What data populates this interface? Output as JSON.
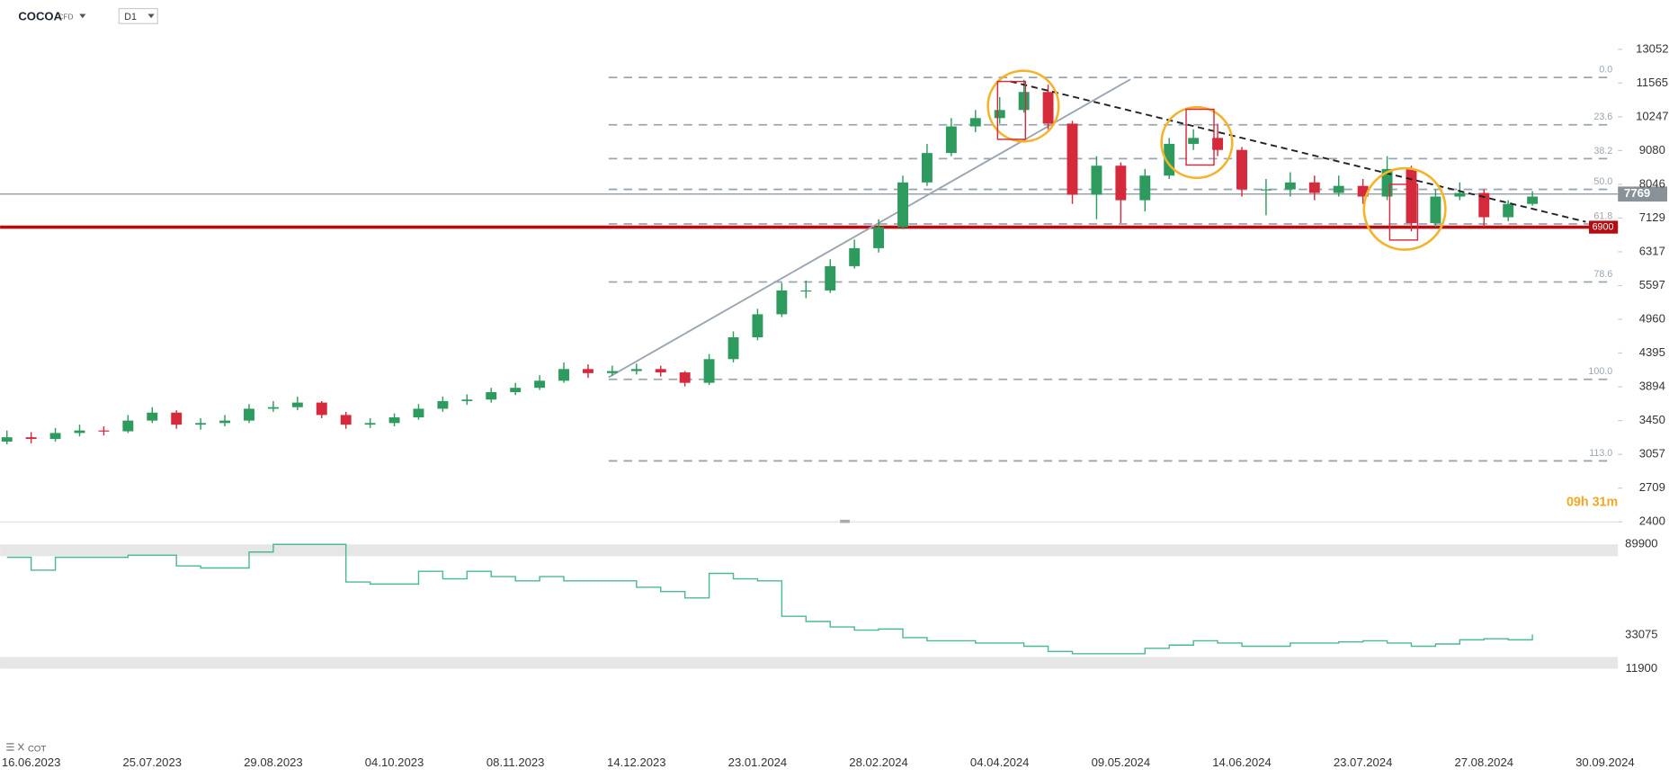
{
  "header": {
    "symbol": "COCOA",
    "instrument": "CFD",
    "interval": "D1",
    "countdown": "09h 31m"
  },
  "chart_data": [
    {
      "type": "candlestick",
      "log_scale": true,
      "up_color": "#2e9b5e",
      "down_color": "#d42a3c",
      "ylim": [
        2400,
        13052
      ],
      "yticks": [
        13052,
        11565,
        10247,
        9080,
        8046,
        7129,
        6317,
        5597,
        4960,
        4395,
        3894,
        3450,
        3057,
        2709,
        2400
      ],
      "categories": [
        null,
        "16.06.2023",
        null,
        null,
        null,
        null,
        "25.07.2023",
        null,
        null,
        null,
        null,
        "29.08.2023",
        null,
        null,
        null,
        null,
        "04.10.2023",
        null,
        null,
        null,
        null,
        "08.11.2023",
        null,
        null,
        null,
        null,
        "14.12.2023",
        null,
        null,
        null,
        null,
        "23.01.2024",
        null,
        null,
        null,
        null,
        "28.02.2024",
        null,
        null,
        null,
        null,
        "04.04.2024",
        null,
        null,
        null,
        null,
        "09.05.2024",
        null,
        null,
        null,
        null,
        "14.06.2024",
        null,
        null,
        null,
        null,
        "23.07.2024",
        null,
        null,
        null,
        null,
        "27.08.2024",
        null,
        null,
        null,
        null,
        "30.09.2024"
      ],
      "open": [
        3200,
        3250,
        3230,
        3300,
        3330,
        3320,
        3450,
        3550,
        3400,
        3420,
        3450,
        3600,
        3620,
        3680,
        3520,
        3400,
        3420,
        3490,
        3600,
        3700,
        3720,
        3820,
        3880,
        3980,
        4150,
        4090,
        4120,
        4150,
        4100,
        3950,
        4300,
        4650,
        5050,
        5500,
        5500,
        6000,
        6400,
        6900,
        8100,
        9000,
        9900,
        10200,
        10500,
        11200,
        10000,
        7750,
        8600,
        7600,
        8300,
        9300,
        9500,
        9100,
        7900,
        7900,
        8100,
        7800,
        8000,
        7700,
        8500,
        7000,
        7700,
        7800,
        7150,
        7500,
        null,
        null,
        null
      ],
      "high": [
        3330,
        3310,
        3360,
        3400,
        3380,
        3520,
        3620,
        3580,
        3480,
        3520,
        3660,
        3700,
        3760,
        3700,
        3560,
        3480,
        3540,
        3660,
        3760,
        3790,
        3880,
        3950,
        4060,
        4250,
        4220,
        4200,
        4230,
        4200,
        4120,
        4380,
        4750,
        5150,
        5650,
        5700,
        6150,
        6600,
        7100,
        8300,
        9300,
        10200,
        10500,
        11000,
        11700,
        11500,
        10100,
        8900,
        8700,
        8500,
        9500,
        9800,
        10000,
        9200,
        8200,
        8400,
        8300,
        8300,
        8200,
        8900,
        8600,
        7900,
        8100,
        7900,
        7600,
        7850,
        null,
        null,
        null
      ],
      "low": [
        3170,
        3180,
        3200,
        3260,
        3270,
        3300,
        3420,
        3350,
        3340,
        3380,
        3420,
        3560,
        3580,
        3480,
        3350,
        3360,
        3380,
        3460,
        3560,
        3650,
        3680,
        3780,
        3850,
        3950,
        4020,
        4050,
        4070,
        4040,
        3900,
        3920,
        4250,
        4600,
        5000,
        5350,
        5450,
        5950,
        6300,
        6850,
        8000,
        8900,
        9700,
        10000,
        10400,
        9800,
        7500,
        7100,
        7000,
        7300,
        8200,
        9100,
        8900,
        7700,
        7200,
        7700,
        7600,
        7700,
        7500,
        7600,
        6800,
        6900,
        7600,
        6900,
        7050,
        7450,
        null,
        null,
        null
      ],
      "close": [
        3250,
        3230,
        3300,
        3330,
        3320,
        3450,
        3550,
        3400,
        3420,
        3450,
        3600,
        3620,
        3680,
        3520,
        3400,
        3420,
        3490,
        3600,
        3700,
        3720,
        3820,
        3880,
        3980,
        4150,
        4090,
        4120,
        4150,
        4100,
        3950,
        4300,
        4650,
        5050,
        5500,
        5500,
        6000,
        6400,
        6900,
        8100,
        9000,
        9900,
        10200,
        10500,
        11200,
        10000,
        7750,
        8600,
        7600,
        8300,
        9300,
        9500,
        9100,
        7900,
        7900,
        8100,
        7800,
        8000,
        7700,
        8500,
        7000,
        7700,
        7800,
        7150,
        7500,
        7700,
        null,
        null,
        null
      ],
      "fib_labels": [
        "0.0",
        "23.6",
        "38.2",
        "50.0",
        "61.8",
        "78.6",
        "100.0",
        "113.0"
      ],
      "fib_prices": [
        11800,
        9959,
        8820,
        7900,
        6980,
        5669,
        4000,
        2986
      ],
      "fib_color": "#9aa6b2",
      "last_price": 7769,
      "last_price_color": "#8a9299",
      "support": 6900,
      "support_color": "#b50d12"
    },
    {
      "type": "line",
      "title": "COT",
      "color": "#4db897",
      "ylim": [
        11900,
        89900
      ],
      "yticks": [
        89900,
        33075,
        11900
      ],
      "values": [
        81800,
        73700,
        81800,
        81800,
        81800,
        83100,
        83100,
        76400,
        75100,
        75100,
        85100,
        89900,
        89900,
        89900,
        66300,
        65000,
        65000,
        73000,
        68300,
        73000,
        69700,
        67000,
        69700,
        67000,
        67000,
        67000,
        63000,
        60300,
        56300,
        71700,
        68300,
        67000,
        44800,
        41500,
        38100,
        36100,
        36800,
        31400,
        29400,
        29400,
        28000,
        28000,
        26000,
        22700,
        21300,
        21300,
        21300,
        24700,
        26700,
        29400,
        28000,
        26000,
        26000,
        28000,
        28000,
        28700,
        29400,
        28000,
        26000,
        27400,
        30000,
        30700,
        30000,
        33400,
        null,
        null,
        null
      ]
    }
  ]
}
